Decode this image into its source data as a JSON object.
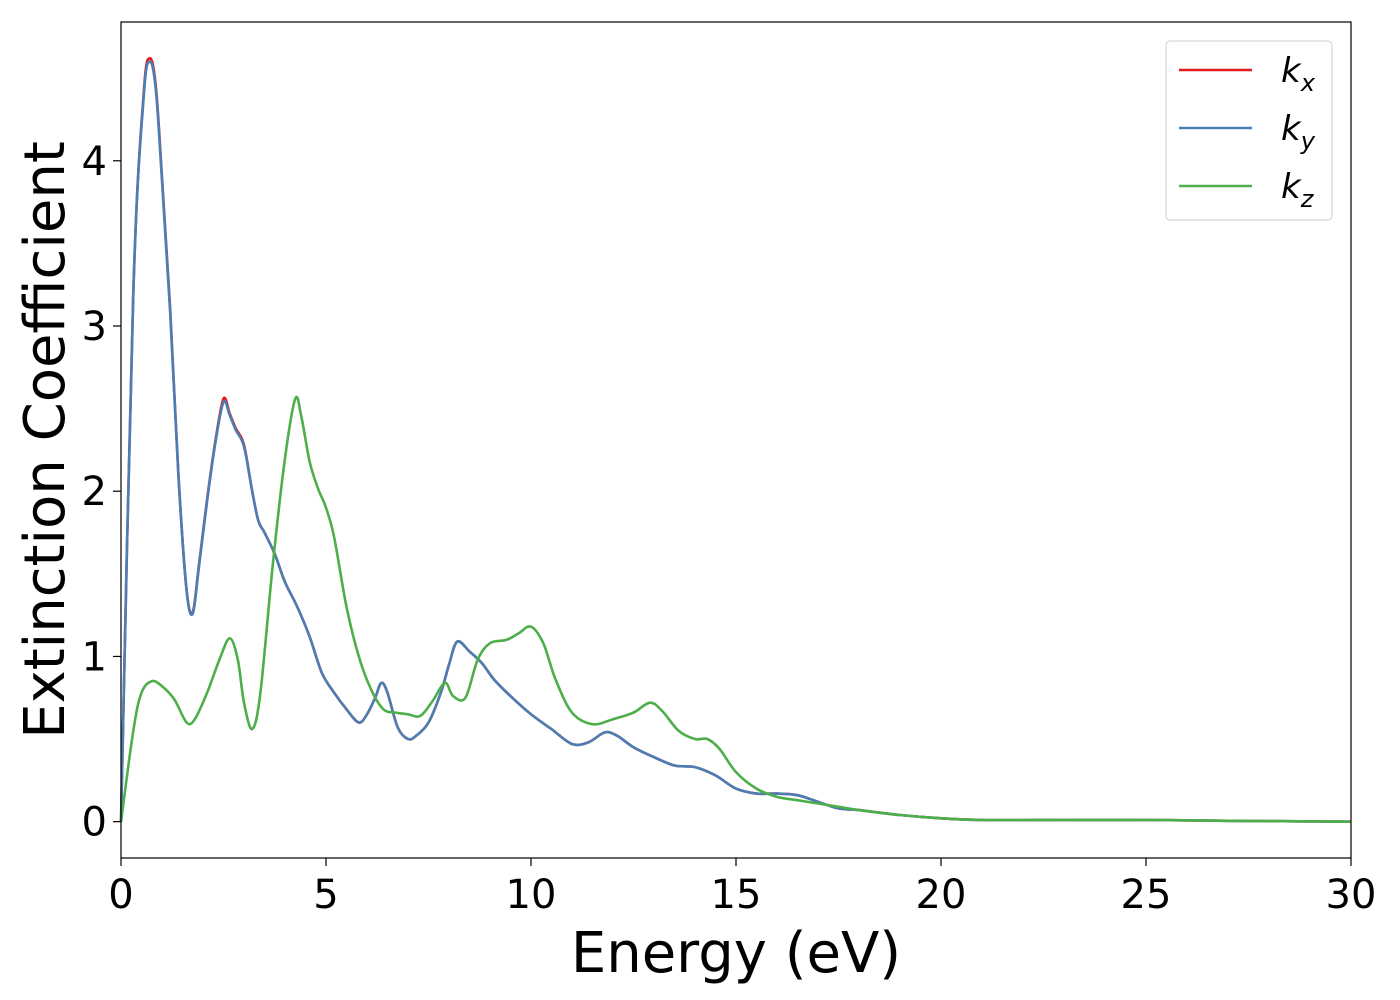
{
  "chart_data": {
    "type": "line",
    "xlabel": "Energy (eV)",
    "ylabel": "Extinction Coefficient",
    "xlim": [
      0,
      30
    ],
    "ylim": [
      -0.22,
      4.84
    ],
    "xticks": [
      0,
      5,
      10,
      15,
      20,
      25,
      30
    ],
    "yticks": [
      0,
      1,
      2,
      3,
      4
    ],
    "grid": false,
    "legend_position": "top-right",
    "series": [
      {
        "name": "k_x",
        "legend_base": "k",
        "legend_sub": "x",
        "color": "#e41a1c",
        "x": [
          0,
          0.3,
          0.55,
          0.7,
          0.85,
          1.0,
          1.2,
          1.4,
          1.6,
          1.75,
          1.9,
          2.1,
          2.3,
          2.5,
          2.65,
          2.8,
          3.0,
          3.2,
          3.35,
          3.5,
          3.75,
          4.0,
          4.3,
          4.6,
          4.9,
          5.2,
          5.5,
          5.8,
          6.0,
          6.2,
          6.35,
          6.5,
          6.75,
          7.0,
          7.2,
          7.5,
          7.8,
          8.0,
          8.2,
          8.5,
          8.8,
          9.1,
          9.5,
          10.0,
          10.5,
          11.0,
          11.4,
          11.8,
          12.1,
          12.5,
          13.0,
          13.5,
          14.0,
          14.5,
          15.0,
          15.5,
          16.0,
          16.5,
          17.0,
          17.5,
          18.0,
          19.0,
          20.0,
          21.0,
          23.0,
          25.0,
          27.0,
          30.0
        ],
        "y": [
          0.0,
          3.2,
          4.4,
          4.62,
          4.45,
          3.9,
          3.1,
          2.1,
          1.4,
          1.27,
          1.55,
          1.95,
          2.3,
          2.56,
          2.47,
          2.38,
          2.28,
          2.0,
          1.82,
          1.75,
          1.62,
          1.45,
          1.3,
          1.12,
          0.9,
          0.78,
          0.68,
          0.6,
          0.65,
          0.75,
          0.84,
          0.78,
          0.57,
          0.5,
          0.52,
          0.6,
          0.78,
          0.95,
          1.09,
          1.03,
          0.96,
          0.86,
          0.76,
          0.65,
          0.56,
          0.47,
          0.48,
          0.54,
          0.52,
          0.45,
          0.39,
          0.34,
          0.33,
          0.28,
          0.2,
          0.17,
          0.17,
          0.16,
          0.12,
          0.08,
          0.07,
          0.04,
          0.02,
          0.01,
          0.01,
          0.01,
          0.005,
          0.0
        ]
      },
      {
        "name": "k_y",
        "legend_base": "k",
        "legend_sub": "y",
        "color": "#4a7fb5",
        "x": [
          0,
          0.3,
          0.55,
          0.7,
          0.85,
          1.0,
          1.2,
          1.4,
          1.6,
          1.75,
          1.9,
          2.1,
          2.3,
          2.5,
          2.65,
          2.8,
          3.0,
          3.2,
          3.35,
          3.5,
          3.75,
          4.0,
          4.3,
          4.6,
          4.9,
          5.2,
          5.5,
          5.8,
          6.0,
          6.2,
          6.35,
          6.5,
          6.75,
          7.0,
          7.2,
          7.5,
          7.8,
          8.0,
          8.2,
          8.5,
          8.8,
          9.1,
          9.5,
          10.0,
          10.5,
          11.0,
          11.4,
          11.8,
          12.1,
          12.5,
          13.0,
          13.5,
          14.0,
          14.5,
          15.0,
          15.5,
          16.0,
          16.5,
          17.0,
          17.5,
          18.0,
          19.0,
          20.0,
          21.0,
          23.0,
          25.0,
          27.0,
          30.0
        ],
        "y": [
          0.0,
          3.2,
          4.38,
          4.6,
          4.43,
          3.88,
          3.08,
          2.1,
          1.4,
          1.26,
          1.54,
          1.94,
          2.29,
          2.54,
          2.46,
          2.37,
          2.27,
          2.0,
          1.82,
          1.75,
          1.62,
          1.45,
          1.3,
          1.12,
          0.9,
          0.78,
          0.68,
          0.6,
          0.65,
          0.75,
          0.84,
          0.78,
          0.57,
          0.5,
          0.52,
          0.6,
          0.78,
          0.95,
          1.09,
          1.03,
          0.96,
          0.86,
          0.76,
          0.65,
          0.56,
          0.47,
          0.48,
          0.54,
          0.52,
          0.45,
          0.39,
          0.34,
          0.33,
          0.28,
          0.2,
          0.17,
          0.17,
          0.16,
          0.12,
          0.08,
          0.07,
          0.04,
          0.02,
          0.01,
          0.01,
          0.01,
          0.005,
          0.0
        ]
      },
      {
        "name": "k_z",
        "legend_base": "k",
        "legend_sub": "z",
        "color": "#4daf4a",
        "x": [
          0,
          0.3,
          0.5,
          0.75,
          1.0,
          1.3,
          1.6,
          1.8,
          2.1,
          2.4,
          2.65,
          2.85,
          3.0,
          3.2,
          3.4,
          3.7,
          4.0,
          4.25,
          4.4,
          4.6,
          4.8,
          5.0,
          5.2,
          5.5,
          5.8,
          6.1,
          6.4,
          6.7,
          7.0,
          7.3,
          7.6,
          7.9,
          8.1,
          8.4,
          8.7,
          9.0,
          9.4,
          9.7,
          10.0,
          10.3,
          10.6,
          11.0,
          11.5,
          12.0,
          12.5,
          12.9,
          13.2,
          13.6,
          14.0,
          14.3,
          14.6,
          15.0,
          15.5,
          16.0,
          16.5,
          17.0,
          17.5,
          18.0,
          19.0,
          20.0,
          21.0,
          23.0,
          25.0,
          27.0,
          30.0
        ],
        "y": [
          0.0,
          0.55,
          0.78,
          0.85,
          0.82,
          0.74,
          0.6,
          0.62,
          0.78,
          0.98,
          1.11,
          0.98,
          0.72,
          0.56,
          0.78,
          1.55,
          2.2,
          2.56,
          2.45,
          2.18,
          2.02,
          1.9,
          1.72,
          1.3,
          1.0,
          0.8,
          0.68,
          0.66,
          0.65,
          0.64,
          0.73,
          0.84,
          0.76,
          0.75,
          0.98,
          1.08,
          1.1,
          1.14,
          1.18,
          1.08,
          0.86,
          0.66,
          0.59,
          0.62,
          0.66,
          0.72,
          0.67,
          0.55,
          0.5,
          0.5,
          0.44,
          0.3,
          0.2,
          0.15,
          0.13,
          0.11,
          0.09,
          0.07,
          0.04,
          0.02,
          0.01,
          0.01,
          0.01,
          0.005,
          0.0
        ]
      }
    ]
  }
}
